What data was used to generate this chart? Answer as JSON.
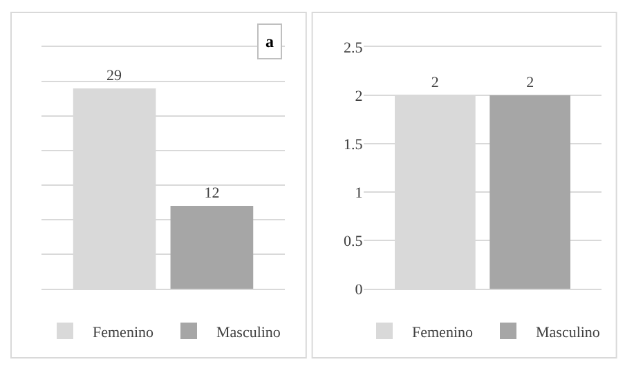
{
  "chart_data": [
    {
      "type": "bar",
      "categories": [
        null
      ],
      "series": [
        {
          "name": "Femenino",
          "color": "#d9d9d9",
          "values": [
            29
          ]
        },
        {
          "name": "Masculino",
          "color": "#a6a6a6",
          "values": [
            12
          ]
        }
      ],
      "ylim": [
        0,
        35
      ],
      "yticks": [
        {
          "value": 0,
          "label": null
        },
        {
          "value": 5,
          "label": null
        },
        {
          "value": 10,
          "label": null
        },
        {
          "value": 15,
          "label": null
        },
        {
          "value": 20,
          "label": null
        },
        {
          "value": 25,
          "label": null
        },
        {
          "value": 30,
          "label": null
        },
        {
          "value": 35,
          "label": null
        }
      ],
      "tick_labels": false,
      "grid": "y",
      "legend": "bottom",
      "data_labels": true,
      "annotations": [
        "a"
      ]
    },
    {
      "type": "bar",
      "categories": [
        null
      ],
      "series": [
        {
          "name": "Femenino",
          "color": "#d9d9d9",
          "values": [
            2
          ]
        },
        {
          "name": "Masculino",
          "color": "#a6a6a6",
          "values": [
            2
          ]
        }
      ],
      "ylim": [
        0,
        2.5
      ],
      "yticks": [
        0,
        0.5,
        1,
        1.5,
        2,
        2.5
      ],
      "tick_labels": "y",
      "grid": "y",
      "legend": "bottom",
      "data_labels": true
    }
  ]
}
